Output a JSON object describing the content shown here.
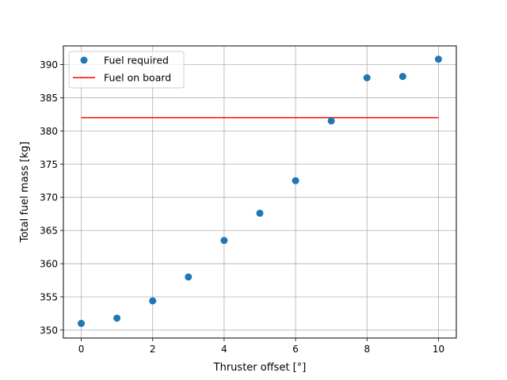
{
  "chart_data": {
    "type": "scatter",
    "title": "",
    "xlabel": "Thruster offset [°]",
    "ylabel": "Total fuel mass [kg]",
    "xlim": [
      -0.5,
      10.5
    ],
    "ylim": [
      348.8,
      392.8
    ],
    "xticks": [
      0,
      2,
      4,
      6,
      8,
      10
    ],
    "yticks": [
      350,
      355,
      360,
      365,
      370,
      375,
      380,
      385,
      390
    ],
    "grid": true,
    "legend_position": "top-left",
    "series": [
      {
        "name": "Fuel required",
        "kind": "scatter",
        "color": "#1f77b4",
        "x": [
          0,
          1,
          2,
          3,
          4,
          5,
          6,
          7,
          8,
          9,
          10
        ],
        "y": [
          351.0,
          351.8,
          354.4,
          358.0,
          363.5,
          367.6,
          372.5,
          381.5,
          388.0,
          388.2,
          390.8
        ]
      },
      {
        "name": "Fuel on board",
        "kind": "line",
        "color": "#ff0000",
        "x": [
          0,
          10
        ],
        "y": [
          382.0,
          382.0
        ]
      }
    ]
  }
}
